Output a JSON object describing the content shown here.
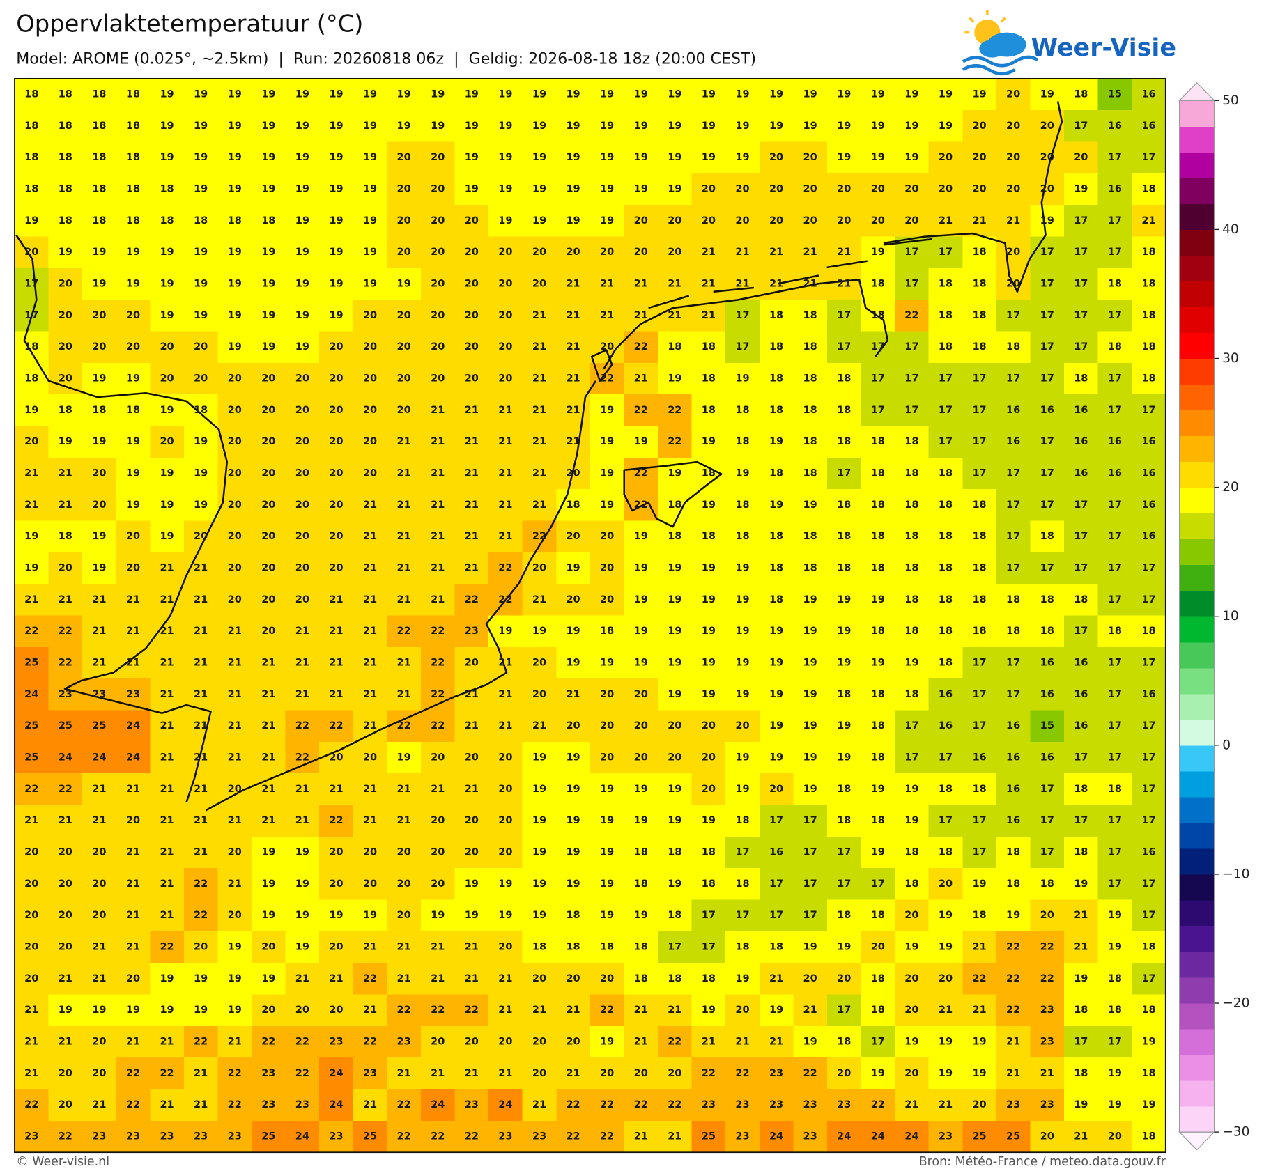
{
  "header": {
    "title": "Oppervlaktetemperatuur (°C)",
    "subtitle": "Model: AROME (0.025°, ~2.5km)  |  Run: 20260818 06z  |  Geldig: 2026-08-18 18z (20:00 CEST)",
    "logo": "Weer-Visie"
  },
  "footer": {
    "left": "© Weer-visie.nl",
    "right": "Bron: Météo-France / meteo.data.gouv.fr"
  },
  "colorbar": {
    "lim": [
      -30,
      50
    ],
    "ticks": [
      50,
      40,
      30,
      20,
      10,
      0,
      {
        "value": -10,
        "label": "−10"
      },
      {
        "value": -20,
        "label": "−20"
      },
      {
        "value": -30,
        "label": "−30"
      }
    ],
    "colors": [
      "#fbd4f8",
      "#f6b2ee",
      "#eb8ee6",
      "#d46ed8",
      "#b452c0",
      "#8e3cae",
      "#6c28a0",
      "#4a1490",
      "#2c0a70",
      "#160850",
      "#00207a",
      "#0046a8",
      "#0070c8",
      "#00a0e0",
      "#38c8f8",
      "#d2fbe2",
      "#a8f0b0",
      "#78e080",
      "#48c858",
      "#00b830",
      "#008c28",
      "#40b010",
      "#88c800",
      "#c8dc00",
      "#ffff00",
      "#ffdc00",
      "#ffb400",
      "#ff8c00",
      "#ff6400",
      "#ff3c00",
      "#ff0000",
      "#e00000",
      "#c00000",
      "#a00010",
      "#800010",
      "#500030",
      "#800060",
      "#b000a0",
      "#e040c8",
      "#f8a8d8"
    ],
    "under_color": "#fdf2fd",
    "over_color": "#fde4f4"
  },
  "map": {
    "values": [
      [
        18,
        18,
        18,
        18,
        19,
        19,
        19,
        19,
        19,
        19,
        19,
        19,
        19,
        19,
        19,
        19,
        19,
        19,
        19,
        19,
        19,
        19,
        19,
        19,
        19,
        19,
        19,
        19,
        19,
        20,
        19,
        18,
        15,
        16
      ],
      [
        18,
        18,
        18,
        18,
        19,
        19,
        19,
        19,
        19,
        19,
        19,
        19,
        19,
        19,
        19,
        19,
        19,
        19,
        19,
        19,
        19,
        19,
        19,
        19,
        19,
        19,
        19,
        19,
        20,
        20,
        20,
        17,
        16,
        16
      ],
      [
        18,
        18,
        18,
        18,
        19,
        19,
        19,
        19,
        19,
        19,
        19,
        20,
        20,
        19,
        19,
        19,
        19,
        19,
        19,
        19,
        19,
        19,
        20,
        20,
        19,
        19,
        19,
        20,
        20,
        20,
        20,
        20,
        17,
        17
      ],
      [
        18,
        18,
        18,
        18,
        18,
        19,
        19,
        19,
        19,
        19,
        19,
        20,
        20,
        19,
        19,
        19,
        19,
        19,
        19,
        19,
        20,
        20,
        20,
        20,
        20,
        20,
        20,
        20,
        20,
        20,
        20,
        19,
        16,
        18
      ],
      [
        19,
        18,
        18,
        18,
        18,
        18,
        18,
        18,
        19,
        19,
        19,
        20,
        20,
        20,
        19,
        19,
        19,
        19,
        20,
        20,
        20,
        20,
        20,
        20,
        20,
        20,
        20,
        21,
        21,
        21,
        19,
        17,
        17,
        21
      ],
      [
        20,
        19,
        19,
        19,
        19,
        19,
        19,
        19,
        19,
        19,
        19,
        20,
        20,
        20,
        20,
        20,
        20,
        20,
        20,
        20,
        21,
        21,
        21,
        21,
        21,
        19,
        17,
        17,
        18,
        20,
        17,
        17,
        17,
        18
      ],
      [
        17,
        20,
        19,
        19,
        19,
        19,
        19,
        19,
        19,
        19,
        19,
        19,
        20,
        20,
        20,
        20,
        21,
        21,
        21,
        21,
        21,
        21,
        21,
        21,
        21,
        18,
        17,
        18,
        18,
        20,
        17,
        17,
        18,
        18
      ],
      [
        17,
        20,
        20,
        20,
        19,
        19,
        19,
        19,
        19,
        19,
        20,
        20,
        20,
        20,
        20,
        21,
        21,
        21,
        21,
        21,
        21,
        17,
        18,
        18,
        17,
        18,
        22,
        18,
        18,
        17,
        17,
        17,
        17,
        18
      ],
      [
        18,
        20,
        20,
        20,
        20,
        20,
        19,
        19,
        19,
        20,
        20,
        20,
        20,
        20,
        20,
        21,
        21,
        20,
        22,
        18,
        18,
        17,
        18,
        18,
        17,
        17,
        17,
        18,
        18,
        18,
        17,
        17,
        18,
        18
      ],
      [
        18,
        20,
        19,
        19,
        20,
        20,
        20,
        20,
        20,
        20,
        20,
        20,
        20,
        20,
        20,
        21,
        21,
        22,
        21,
        19,
        18,
        19,
        18,
        18,
        18,
        17,
        17,
        17,
        17,
        17,
        17,
        18,
        17,
        18
      ],
      [
        19,
        18,
        18,
        18,
        19,
        18,
        20,
        20,
        20,
        20,
        20,
        20,
        21,
        21,
        21,
        21,
        21,
        19,
        22,
        22,
        18,
        18,
        18,
        18,
        18,
        17,
        17,
        17,
        17,
        16,
        16,
        16,
        17,
        17
      ],
      [
        20,
        19,
        19,
        19,
        20,
        19,
        20,
        20,
        20,
        20,
        20,
        21,
        21,
        21,
        21,
        21,
        21,
        19,
        19,
        22,
        19,
        18,
        19,
        18,
        18,
        18,
        18,
        17,
        17,
        16,
        17,
        16,
        16,
        16
      ],
      [
        21,
        21,
        20,
        19,
        19,
        19,
        20,
        20,
        20,
        20,
        20,
        21,
        21,
        21,
        21,
        21,
        20,
        19,
        22,
        19,
        18,
        19,
        18,
        18,
        17,
        18,
        18,
        18,
        17,
        17,
        17,
        16,
        16,
        16
      ],
      [
        21,
        21,
        20,
        19,
        19,
        19,
        20,
        20,
        20,
        20,
        21,
        21,
        21,
        21,
        21,
        21,
        18,
        19,
        22,
        18,
        19,
        18,
        19,
        19,
        18,
        18,
        18,
        18,
        18,
        17,
        17,
        17,
        17,
        16
      ],
      [
        19,
        18,
        19,
        20,
        19,
        20,
        20,
        20,
        20,
        20,
        21,
        21,
        21,
        21,
        21,
        22,
        20,
        20,
        19,
        18,
        18,
        18,
        18,
        18,
        18,
        18,
        18,
        18,
        18,
        17,
        18,
        17,
        17,
        16
      ],
      [
        19,
        20,
        19,
        20,
        21,
        21,
        20,
        20,
        20,
        20,
        21,
        21,
        21,
        21,
        22,
        20,
        19,
        20,
        19,
        19,
        19,
        19,
        18,
        18,
        18,
        18,
        18,
        18,
        18,
        17,
        17,
        17,
        17,
        17
      ],
      [
        21,
        21,
        21,
        21,
        21,
        21,
        20,
        20,
        20,
        21,
        21,
        21,
        21,
        22,
        22,
        21,
        20,
        20,
        19,
        19,
        19,
        19,
        18,
        19,
        19,
        19,
        18,
        18,
        18,
        18,
        18,
        18,
        17,
        17
      ],
      [
        22,
        22,
        21,
        21,
        21,
        21,
        21,
        20,
        21,
        21,
        21,
        22,
        22,
        23,
        19,
        19,
        19,
        18,
        19,
        19,
        19,
        19,
        19,
        19,
        19,
        18,
        18,
        18,
        18,
        18,
        18,
        17,
        18,
        18
      ],
      [
        25,
        22,
        21,
        21,
        21,
        21,
        21,
        21,
        21,
        21,
        21,
        21,
        22,
        20,
        21,
        20,
        19,
        19,
        19,
        19,
        19,
        19,
        19,
        19,
        19,
        19,
        19,
        18,
        17,
        17,
        16,
        16,
        17,
        17
      ],
      [
        24,
        23,
        23,
        23,
        21,
        21,
        21,
        21,
        21,
        21,
        21,
        21,
        22,
        21,
        21,
        20,
        21,
        20,
        20,
        19,
        19,
        19,
        19,
        19,
        18,
        18,
        18,
        16,
        17,
        17,
        16,
        16,
        17,
        16
      ],
      [
        25,
        25,
        25,
        24,
        21,
        21,
        21,
        21,
        22,
        22,
        21,
        22,
        22,
        21,
        21,
        21,
        20,
        20,
        20,
        20,
        20,
        20,
        19,
        19,
        19,
        18,
        17,
        16,
        17,
        16,
        15,
        16,
        17,
        17
      ],
      [
        25,
        24,
        24,
        24,
        21,
        21,
        21,
        21,
        22,
        20,
        20,
        19,
        20,
        20,
        20,
        19,
        19,
        20,
        20,
        20,
        20,
        19,
        19,
        19,
        19,
        18,
        17,
        17,
        16,
        16,
        16,
        17,
        17,
        17
      ],
      [
        22,
        22,
        21,
        21,
        21,
        21,
        20,
        21,
        21,
        21,
        21,
        21,
        21,
        21,
        20,
        19,
        19,
        19,
        19,
        19,
        20,
        19,
        20,
        19,
        18,
        19,
        19,
        18,
        18,
        16,
        17,
        18,
        18,
        17
      ],
      [
        21,
        21,
        21,
        20,
        21,
        21,
        21,
        21,
        21,
        22,
        21,
        21,
        20,
        20,
        20,
        19,
        19,
        19,
        19,
        19,
        19,
        18,
        17,
        17,
        18,
        18,
        19,
        17,
        17,
        16,
        17,
        17,
        17,
        17
      ],
      [
        20,
        20,
        20,
        21,
        21,
        21,
        20,
        19,
        19,
        20,
        20,
        20,
        20,
        20,
        20,
        19,
        19,
        19,
        18,
        18,
        18,
        17,
        16,
        17,
        17,
        19,
        18,
        18,
        17,
        18,
        17,
        18,
        17,
        16
      ],
      [
        20,
        20,
        20,
        21,
        21,
        22,
        21,
        19,
        19,
        20,
        20,
        20,
        20,
        19,
        19,
        19,
        19,
        19,
        18,
        19,
        18,
        18,
        17,
        17,
        17,
        17,
        18,
        20,
        19,
        18,
        18,
        19,
        17,
        17
      ],
      [
        20,
        20,
        20,
        21,
        21,
        22,
        20,
        19,
        19,
        19,
        19,
        20,
        19,
        19,
        19,
        19,
        18,
        19,
        19,
        18,
        17,
        17,
        17,
        17,
        18,
        18,
        20,
        19,
        18,
        19,
        20,
        21,
        19,
        17
      ],
      [
        20,
        20,
        21,
        21,
        22,
        20,
        19,
        20,
        19,
        20,
        21,
        21,
        21,
        21,
        20,
        18,
        18,
        18,
        18,
        17,
        17,
        18,
        18,
        19,
        19,
        20,
        19,
        19,
        21,
        22,
        22,
        21,
        19,
        18
      ],
      [
        20,
        21,
        21,
        20,
        19,
        19,
        19,
        19,
        21,
        21,
        22,
        21,
        21,
        21,
        21,
        20,
        20,
        20,
        18,
        18,
        18,
        19,
        21,
        20,
        20,
        18,
        20,
        20,
        22,
        22,
        22,
        19,
        18,
        17
      ],
      [
        21,
        19,
        19,
        19,
        19,
        19,
        19,
        20,
        20,
        20,
        21,
        22,
        22,
        22,
        21,
        21,
        21,
        22,
        21,
        21,
        19,
        20,
        19,
        21,
        17,
        18,
        20,
        21,
        21,
        22,
        23,
        18,
        18,
        18
      ],
      [
        21,
        21,
        20,
        21,
        21,
        22,
        21,
        22,
        22,
        23,
        22,
        23,
        20,
        20,
        20,
        20,
        20,
        19,
        21,
        22,
        21,
        21,
        21,
        19,
        18,
        17,
        19,
        19,
        19,
        21,
        23,
        17,
        17,
        19
      ],
      [
        21,
        20,
        20,
        22,
        22,
        21,
        22,
        23,
        22,
        24,
        23,
        21,
        21,
        21,
        21,
        20,
        21,
        20,
        20,
        20,
        22,
        22,
        23,
        22,
        20,
        19,
        20,
        19,
        19,
        21,
        21,
        18,
        19,
        18
      ],
      [
        22,
        20,
        21,
        22,
        21,
        21,
        22,
        23,
        23,
        24,
        21,
        22,
        24,
        23,
        24,
        21,
        22,
        22,
        22,
        22,
        23,
        23,
        23,
        23,
        23,
        22,
        21,
        21,
        20,
        23,
        23,
        19,
        19,
        19
      ],
      [
        23,
        22,
        23,
        23,
        23,
        23,
        23,
        25,
        24,
        23,
        25,
        22,
        22,
        22,
        23,
        23,
        22,
        22,
        21,
        21,
        25,
        23,
        24,
        23,
        24,
        24,
        24,
        23,
        25,
        25,
        20,
        21,
        20,
        18
      ]
    ]
  }
}
